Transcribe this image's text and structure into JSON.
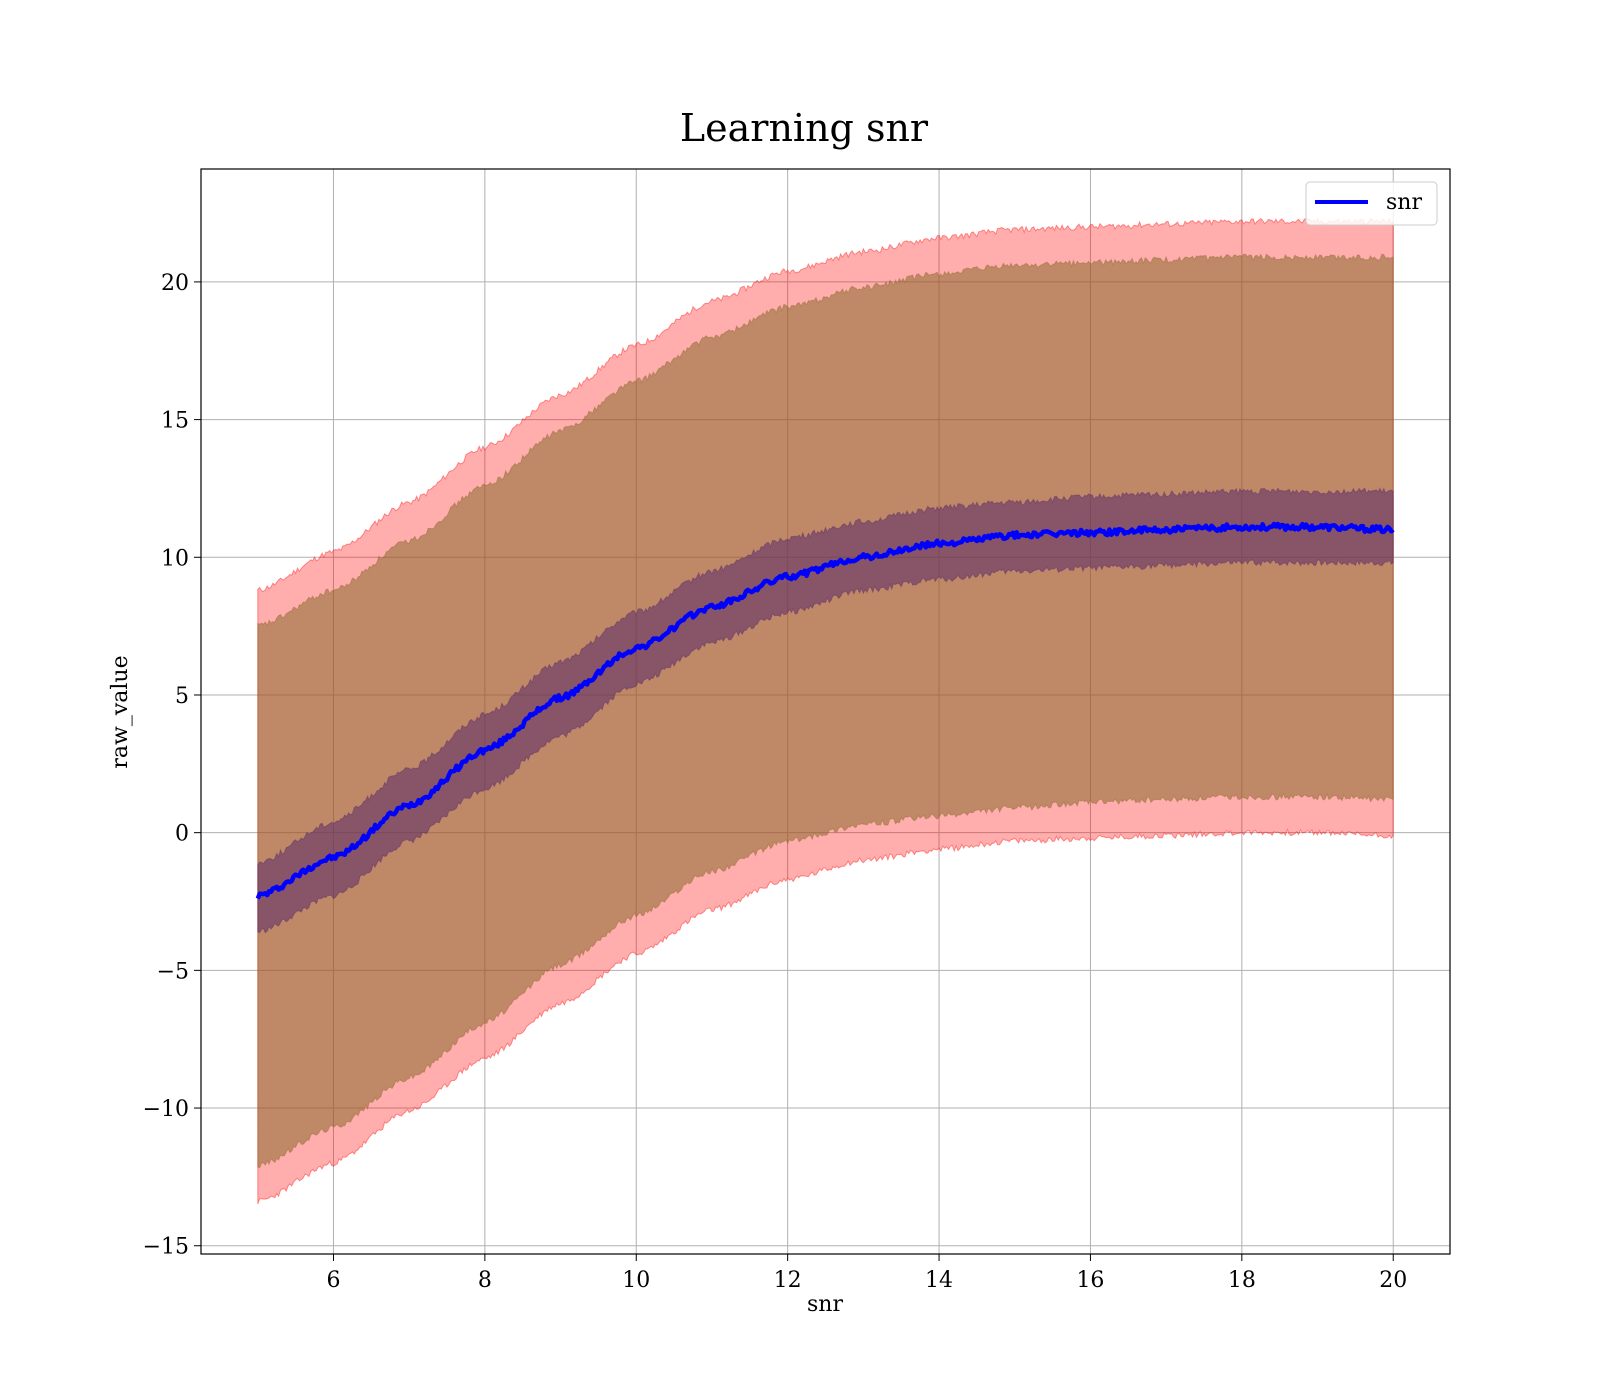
{
  "chart_data": {
    "type": "line",
    "title": "Learning snr",
    "xlabel": "snr",
    "ylabel": "raw_value",
    "xlim": [
      4.25,
      20.75
    ],
    "ylim": [
      -15.3,
      24.1
    ],
    "xticks": [
      6,
      8,
      10,
      12,
      14,
      16,
      18,
      20
    ],
    "yticks": [
      -15,
      -10,
      -5,
      0,
      5,
      10,
      15,
      20
    ],
    "ytick_labels": [
      "−15",
      "−10",
      "−5",
      "0",
      "5",
      "10",
      "15",
      "20"
    ],
    "grid": true,
    "legend": {
      "position": "top-right",
      "entries": [
        "snr"
      ]
    },
    "colors": {
      "line": "#0000ff",
      "outer_band": "#ff0000",
      "middle_band": "#8b6a2c",
      "inner_band": "#5a2a6a",
      "grid": "#b0b0b0"
    },
    "series": [
      {
        "name": "snr",
        "x": [
          5,
          6,
          7,
          8,
          9,
          10,
          11,
          12,
          13,
          14,
          15,
          16,
          17,
          18,
          19,
          20
        ],
        "y": [
          -2.3,
          -0.9,
          1.0,
          3.0,
          4.9,
          6.7,
          8.2,
          9.3,
          10.0,
          10.5,
          10.8,
          10.9,
          11.0,
          11.1,
          11.1,
          11.0
        ]
      }
    ],
    "bands": [
      {
        "kind": "outer",
        "x": [
          5,
          6,
          7,
          8,
          9,
          10,
          11,
          12,
          13,
          14,
          15,
          16,
          17,
          18,
          19,
          20
        ],
        "upper": [
          8.8,
          10.2,
          12.0,
          14.0,
          15.9,
          17.7,
          19.3,
          20.4,
          21.1,
          21.6,
          21.9,
          22.0,
          22.1,
          22.2,
          22.2,
          22.2
        ],
        "lower": [
          -13.4,
          -12.0,
          -10.1,
          -8.2,
          -6.2,
          -4.4,
          -2.8,
          -1.7,
          -1.0,
          -0.6,
          -0.3,
          -0.2,
          -0.1,
          0.0,
          0.0,
          -0.1
        ]
      },
      {
        "kind": "middle",
        "x": [
          5,
          6,
          7,
          8,
          9,
          10,
          11,
          12,
          13,
          14,
          15,
          16,
          17,
          18,
          19,
          20
        ],
        "upper": [
          7.5,
          8.8,
          10.6,
          12.6,
          14.6,
          16.4,
          18.0,
          19.1,
          19.8,
          20.3,
          20.6,
          20.7,
          20.8,
          20.9,
          20.9,
          20.9
        ],
        "lower": [
          -12.1,
          -10.7,
          -8.9,
          -6.9,
          -4.8,
          -3.0,
          -1.4,
          -0.3,
          0.3,
          0.6,
          0.9,
          1.1,
          1.2,
          1.3,
          1.3,
          1.2
        ]
      },
      {
        "kind": "inner",
        "x": [
          5,
          6,
          7,
          8,
          9,
          10,
          11,
          12,
          13,
          14,
          15,
          16,
          17,
          18,
          19,
          20
        ],
        "upper": [
          -1.1,
          0.4,
          2.3,
          4.3,
          6.2,
          8.0,
          9.5,
          10.7,
          11.3,
          11.8,
          12.0,
          12.2,
          12.3,
          12.4,
          12.4,
          12.4
        ],
        "lower": [
          -3.6,
          -2.3,
          -0.3,
          1.6,
          3.5,
          5.4,
          6.9,
          8.0,
          8.8,
          9.2,
          9.5,
          9.6,
          9.7,
          9.8,
          9.8,
          9.8
        ]
      }
    ]
  }
}
